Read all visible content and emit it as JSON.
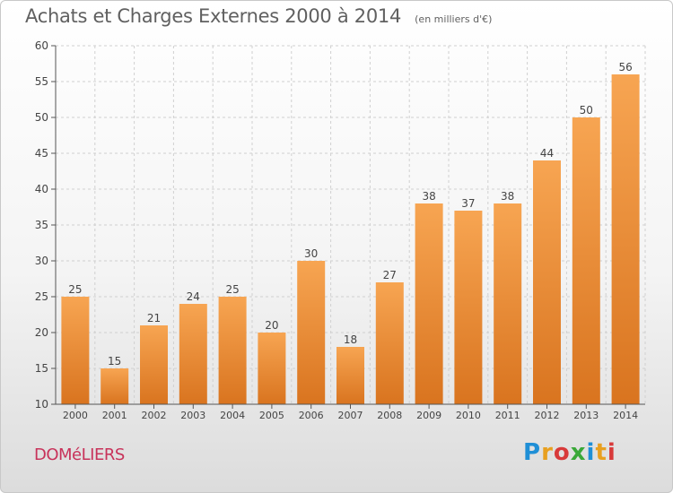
{
  "title": "Achats et Charges Externes 2000 à 2014",
  "subtitle": "(en milliers d'€)",
  "place": "DOMéLIERS",
  "logo": "Proxiti",
  "colors": {
    "bar_light": "#f7a552",
    "bar_dark": "#d9741f",
    "axis": "#555555",
    "grid": "#d0d0d0",
    "place": "#c8325a"
  },
  "chart_data": {
    "type": "bar",
    "categories": [
      "2000",
      "2001",
      "2002",
      "2003",
      "2004",
      "2005",
      "2006",
      "2007",
      "2008",
      "2009",
      "2010",
      "2011",
      "2012",
      "2013",
      "2014"
    ],
    "values": [
      25,
      15,
      21,
      24,
      25,
      20,
      30,
      18,
      27,
      38,
      37,
      38,
      44,
      50,
      56
    ],
    "ylim": [
      10,
      60
    ],
    "yticks": [
      10,
      15,
      20,
      25,
      30,
      35,
      40,
      45,
      50,
      55,
      60
    ],
    "grid": true,
    "data_labels": true
  }
}
